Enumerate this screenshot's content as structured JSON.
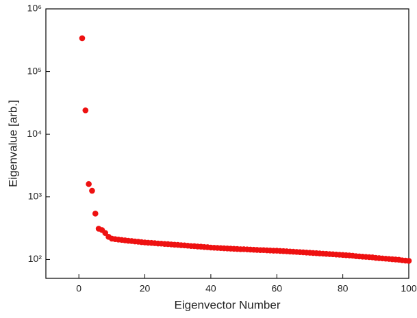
{
  "chart_data": {
    "type": "scatter",
    "xlabel": "Eigenvector Number",
    "ylabel": "Eigenvalue [arb.]",
    "x": [
      1,
      2,
      3,
      4,
      5,
      6,
      7,
      8,
      9,
      10,
      11,
      12,
      13,
      14,
      15,
      16,
      17,
      18,
      19,
      20,
      21,
      22,
      23,
      24,
      25,
      26,
      27,
      28,
      29,
      30,
      31,
      32,
      33,
      34,
      35,
      36,
      37,
      38,
      39,
      40,
      41,
      42,
      43,
      44,
      45,
      46,
      47,
      48,
      49,
      50,
      51,
      52,
      53,
      54,
      55,
      56,
      57,
      58,
      59,
      60,
      61,
      62,
      63,
      64,
      65,
      66,
      67,
      68,
      69,
      70,
      71,
      72,
      73,
      74,
      75,
      76,
      77,
      78,
      79,
      80,
      81,
      82,
      83,
      84,
      85,
      86,
      87,
      88,
      89,
      90,
      91,
      92,
      93,
      94,
      95,
      96,
      97,
      98,
      99,
      100
    ],
    "values": [
      340000,
      24000,
      1600,
      1250,
      540,
      310,
      295,
      265,
      230,
      215,
      211,
      208,
      205,
      202,
      199,
      197,
      194,
      192,
      189,
      187,
      185,
      184,
      182,
      180,
      179,
      177,
      176,
      174,
      172,
      171,
      169,
      168,
      166,
      164,
      163,
      161,
      160,
      158,
      157,
      155,
      154,
      153,
      152,
      151,
      150,
      149,
      148,
      147,
      146,
      146,
      145,
      144,
      143,
      142,
      141,
      141,
      140,
      139,
      138,
      138,
      137,
      136,
      135,
      134,
      133,
      132,
      131,
      130,
      129,
      128,
      127,
      126,
      125,
      124,
      123,
      122,
      121,
      120,
      119,
      118,
      117,
      116,
      115,
      113,
      112,
      111,
      110,
      109,
      108,
      106,
      105,
      104,
      103,
      102,
      101,
      100,
      99,
      97,
      96,
      95
    ],
    "color": "#ee1111",
    "xlim": [
      -10,
      100
    ],
    "xticks": [
      0,
      20,
      40,
      60,
      80,
      100
    ],
    "ylim": [
      50,
      1000000
    ],
    "yscale": "log",
    "yticks": [
      {
        "value": 100,
        "label": "10²"
      },
      {
        "value": 1000,
        "label": "10³"
      },
      {
        "value": 10000,
        "label": "10⁴"
      },
      {
        "value": 100000,
        "label": "10⁵"
      },
      {
        "value": 1000000,
        "label": "10⁶"
      }
    ],
    "grid": false
  }
}
